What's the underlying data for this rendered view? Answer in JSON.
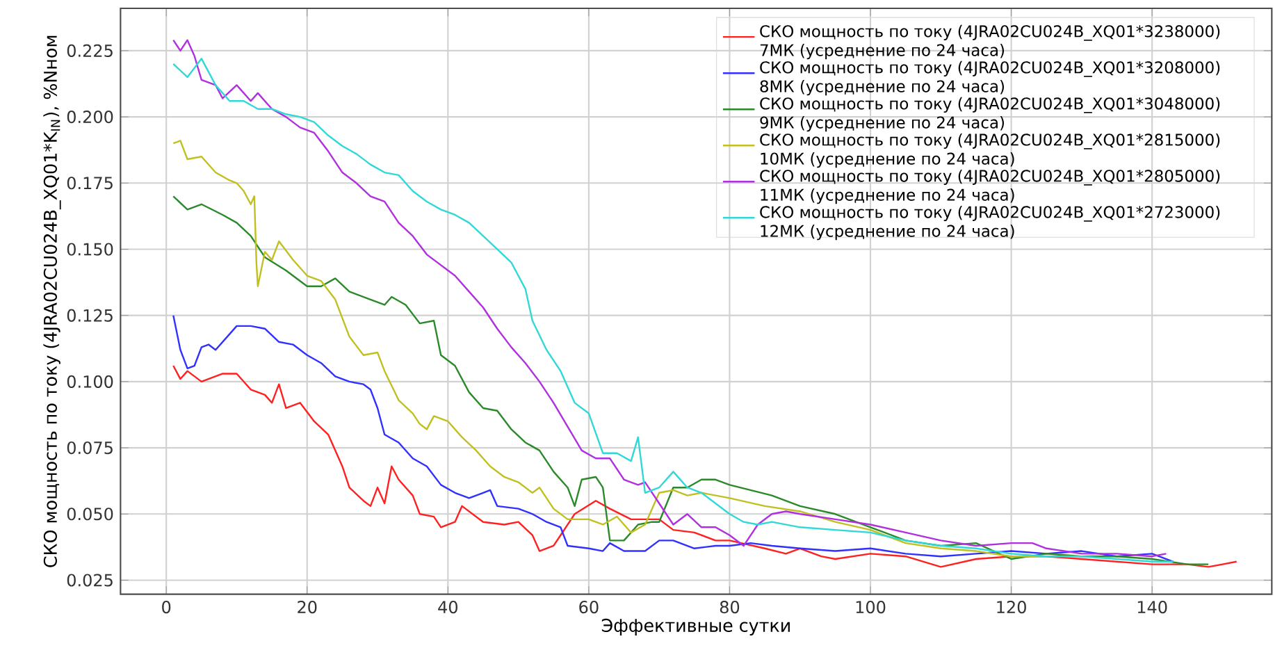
{
  "chart_data": {
    "type": "line",
    "xlabel": "Эффективные сутки",
    "ylabel": "СКО мощность по току (4JRA02CU024B_XQ01*K$_{IN}$), %Nном",
    "xlim": [
      -6.5,
      157
    ],
    "ylim": [
      0.0197,
      0.241
    ],
    "xticks": [
      0,
      20,
      40,
      60,
      80,
      100,
      120,
      140
    ],
    "yticks": [
      {
        "value": 0.025,
        "label": "0.025"
      },
      {
        "value": 0.05,
        "label": "0.050"
      },
      {
        "value": 0.075,
        "label": "0.075"
      },
      {
        "value": 0.1,
        "label": "0.100"
      },
      {
        "value": 0.125,
        "label": "0.125"
      },
      {
        "value": 0.15,
        "label": "0.150"
      },
      {
        "value": 0.175,
        "label": "0.175"
      },
      {
        "value": 0.2,
        "label": "0.200"
      },
      {
        "value": 0.225,
        "label": "0.225"
      }
    ],
    "grid": true,
    "legend": "top right",
    "line_style": "solid",
    "series": [
      {
        "name": "СКО мощность по току (4JRA02CU024B_XQ01*3238000) 7МК (усреднение по 24 часа)",
        "color": "#ff2020",
        "x": [
          1,
          2,
          3,
          5,
          8,
          10,
          12,
          14,
          15,
          16,
          17,
          19,
          21,
          23,
          25,
          26,
          28,
          29,
          30,
          31,
          32,
          33,
          35,
          36,
          38,
          39,
          41,
          42,
          45,
          48,
          50,
          52,
          53,
          55,
          56,
          58,
          61,
          63,
          66,
          70,
          72,
          75,
          78,
          80,
          85,
          88,
          90,
          93,
          95,
          100,
          105,
          110,
          115,
          120,
          125,
          130,
          135,
          140,
          145,
          148,
          150,
          152
        ],
        "values": [
          0.106,
          0.101,
          0.104,
          0.1,
          0.103,
          0.103,
          0.097,
          0.095,
          0.092,
          0.099,
          0.09,
          0.092,
          0.085,
          0.08,
          0.068,
          0.06,
          0.055,
          0.053,
          0.06,
          0.054,
          0.068,
          0.063,
          0.057,
          0.05,
          0.049,
          0.045,
          0.047,
          0.053,
          0.047,
          0.046,
          0.047,
          0.042,
          0.036,
          0.038,
          0.042,
          0.05,
          0.055,
          0.052,
          0.048,
          0.048,
          0.044,
          0.043,
          0.04,
          0.04,
          0.037,
          0.035,
          0.037,
          0.034,
          0.033,
          0.035,
          0.034,
          0.03,
          0.033,
          0.034,
          0.034,
          0.033,
          0.032,
          0.031,
          0.031,
          0.03,
          0.031,
          0.032
        ]
      },
      {
        "name": "СКО мощность по току (4JRA02CU024B_XQ01*3208000) 8МК (усреднение по 24 часа)",
        "color": "#3030ff",
        "x": [
          1,
          2,
          3,
          4,
          5,
          6,
          7,
          9,
          10,
          12,
          14,
          16,
          18,
          20,
          22,
          24,
          26,
          28,
          29,
          30,
          31,
          33,
          35,
          37,
          39,
          41,
          43,
          45,
          46,
          47,
          50,
          52,
          54,
          56,
          57,
          60,
          62,
          63,
          65,
          68,
          70,
          72,
          75,
          78,
          80,
          83,
          86,
          90,
          95,
          100,
          105,
          110,
          115,
          120,
          125,
          130,
          135,
          140,
          143
        ],
        "values": [
          0.125,
          0.112,
          0.105,
          0.106,
          0.113,
          0.114,
          0.112,
          0.118,
          0.121,
          0.121,
          0.12,
          0.115,
          0.114,
          0.11,
          0.107,
          0.102,
          0.1,
          0.099,
          0.097,
          0.09,
          0.08,
          0.077,
          0.071,
          0.068,
          0.061,
          0.058,
          0.056,
          0.058,
          0.059,
          0.053,
          0.052,
          0.05,
          0.047,
          0.045,
          0.038,
          0.037,
          0.036,
          0.039,
          0.036,
          0.036,
          0.04,
          0.04,
          0.037,
          0.038,
          0.038,
          0.039,
          0.038,
          0.037,
          0.036,
          0.037,
          0.035,
          0.034,
          0.035,
          0.036,
          0.035,
          0.036,
          0.034,
          0.035,
          0.032
        ]
      },
      {
        "name": "СКО мощность по току (4JRA02CU024B_XQ01*3048000) 9МК (усреднение по 24 часа)",
        "color": "#2a8a2a",
        "x": [
          1,
          3,
          5,
          8,
          10,
          12,
          14,
          17,
          20,
          22,
          24,
          26,
          29,
          31,
          32,
          34,
          36,
          38,
          39,
          41,
          43,
          45,
          47,
          49,
          51,
          53,
          55,
          57,
          58,
          59,
          61,
          62,
          63,
          65,
          67,
          69,
          70,
          72,
          74,
          76,
          78,
          80,
          83,
          86,
          90,
          95,
          100,
          105,
          110,
          115,
          120,
          125,
          130,
          135,
          140,
          145,
          148
        ],
        "values": [
          0.17,
          0.165,
          0.167,
          0.163,
          0.16,
          0.155,
          0.147,
          0.142,
          0.136,
          0.136,
          0.139,
          0.134,
          0.131,
          0.129,
          0.132,
          0.129,
          0.122,
          0.123,
          0.11,
          0.106,
          0.096,
          0.09,
          0.089,
          0.082,
          0.077,
          0.074,
          0.066,
          0.06,
          0.053,
          0.063,
          0.064,
          0.06,
          0.04,
          0.04,
          0.046,
          0.047,
          0.047,
          0.06,
          0.06,
          0.063,
          0.063,
          0.061,
          0.059,
          0.057,
          0.053,
          0.05,
          0.045,
          0.04,
          0.038,
          0.039,
          0.033,
          0.035,
          0.034,
          0.034,
          0.033,
          0.031,
          0.031
        ]
      },
      {
        "name": "СКО мощность по току (4JRA02CU024B_XQ01*2815000) 10МК (усреднение по 24 часа)",
        "color": "#c0c020",
        "x": [
          1,
          2,
          3,
          5,
          7,
          9,
          10,
          11,
          12,
          12.5,
          12.8,
          13,
          14,
          15,
          16,
          18,
          20,
          22,
          24,
          26,
          28,
          30,
          31,
          33,
          35,
          36,
          37,
          38,
          40,
          42,
          44,
          46,
          48,
          50,
          52,
          53,
          55,
          57,
          60,
          62,
          64,
          66,
          68,
          70,
          72,
          74,
          76,
          80,
          85,
          90,
          95,
          100,
          105,
          110,
          115,
          120,
          125
        ],
        "values": [
          0.19,
          0.191,
          0.184,
          0.185,
          0.179,
          0.176,
          0.175,
          0.172,
          0.167,
          0.17,
          0.145,
          0.136,
          0.149,
          0.146,
          0.153,
          0.146,
          0.14,
          0.138,
          0.131,
          0.117,
          0.11,
          0.111,
          0.104,
          0.093,
          0.088,
          0.084,
          0.082,
          0.087,
          0.085,
          0.079,
          0.074,
          0.068,
          0.064,
          0.062,
          0.058,
          0.06,
          0.052,
          0.048,
          0.048,
          0.046,
          0.049,
          0.043,
          0.046,
          0.058,
          0.059,
          0.057,
          0.058,
          0.056,
          0.053,
          0.051,
          0.047,
          0.044,
          0.039,
          0.037,
          0.036,
          0.034,
          0.034
        ]
      },
      {
        "name": "СКО мощность по току (4JRA02CU024B_XQ01*2805000) 11МК (усреднение по 24 часа)",
        "color": "#b030e0",
        "x": [
          1,
          2,
          3,
          4,
          5,
          7,
          8,
          10,
          12,
          13,
          15,
          17,
          19,
          21,
          23,
          25,
          27,
          29,
          31,
          33,
          35,
          37,
          39,
          41,
          43,
          45,
          47,
          49,
          51,
          53,
          55,
          57,
          59,
          61,
          63,
          65,
          67,
          68,
          70,
          72,
          74,
          76,
          78,
          80,
          82,
          84,
          86,
          88,
          90,
          95,
          100,
          105,
          110,
          115,
          120,
          123,
          125,
          130,
          135,
          140,
          142
        ],
        "values": [
          0.229,
          0.225,
          0.229,
          0.223,
          0.214,
          0.212,
          0.207,
          0.212,
          0.206,
          0.209,
          0.203,
          0.2,
          0.196,
          0.194,
          0.187,
          0.179,
          0.175,
          0.17,
          0.168,
          0.16,
          0.155,
          0.148,
          0.144,
          0.14,
          0.134,
          0.128,
          0.12,
          0.113,
          0.107,
          0.1,
          0.092,
          0.083,
          0.074,
          0.071,
          0.071,
          0.063,
          0.061,
          0.062,
          0.054,
          0.046,
          0.05,
          0.045,
          0.045,
          0.042,
          0.038,
          0.046,
          0.05,
          0.051,
          0.05,
          0.048,
          0.046,
          0.043,
          0.04,
          0.038,
          0.039,
          0.039,
          0.037,
          0.035,
          0.035,
          0.034,
          0.035
        ]
      },
      {
        "name": "СКО мощность по току (4JRA02CU024B_XQ01*2723000) 12МК (усреднение по 24 часа)",
        "color": "#30d8d8",
        "x": [
          1,
          3,
          5,
          7,
          9,
          11,
          13,
          15,
          17,
          19,
          21,
          23,
          25,
          27,
          29,
          31,
          33,
          35,
          37,
          39,
          41,
          43,
          45,
          47,
          49,
          51,
          52,
          54,
          56,
          58,
          60,
          62,
          64,
          66,
          67,
          68,
          70,
          72,
          74,
          76,
          78,
          80,
          82,
          84,
          86,
          90,
          95,
          100,
          105,
          110,
          115,
          120,
          125,
          130,
          135,
          140,
          143
        ],
        "values": [
          0.22,
          0.215,
          0.222,
          0.212,
          0.206,
          0.206,
          0.203,
          0.203,
          0.201,
          0.2,
          0.198,
          0.193,
          0.189,
          0.186,
          0.182,
          0.179,
          0.178,
          0.172,
          0.168,
          0.165,
          0.163,
          0.16,
          0.155,
          0.15,
          0.145,
          0.135,
          0.123,
          0.112,
          0.104,
          0.092,
          0.088,
          0.073,
          0.073,
          0.07,
          0.079,
          0.058,
          0.06,
          0.066,
          0.06,
          0.058,
          0.054,
          0.05,
          0.047,
          0.046,
          0.047,
          0.045,
          0.044,
          0.043,
          0.04,
          0.038,
          0.037,
          0.035,
          0.034,
          0.034,
          0.033,
          0.032,
          0.032
        ]
      }
    ]
  }
}
